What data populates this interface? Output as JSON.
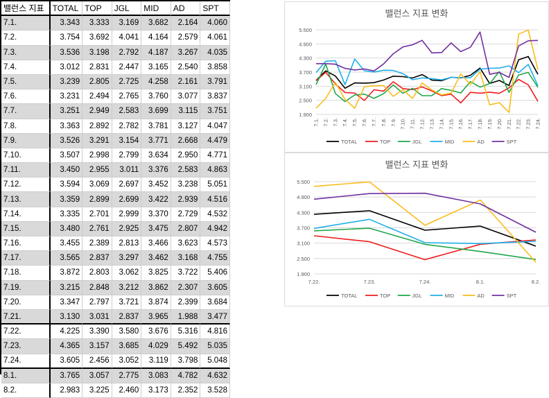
{
  "table": {
    "headers": [
      "밸런스 지표",
      "TOTAL",
      "TOP",
      "JGL",
      "MID",
      "AD",
      "SPT"
    ],
    "rows": [
      [
        "7.1.",
        "3.343",
        "3.333",
        "3.169",
        "3.682",
        "2.164",
        "4.060"
      ],
      [
        "7.2.",
        "3.754",
        "3.692",
        "4.041",
        "4.164",
        "2.579",
        "4.061"
      ],
      [
        "7.3.",
        "3.536",
        "3.198",
        "2.792",
        "4.187",
        "3.267",
        "4.035"
      ],
      [
        "7.4.",
        "3.012",
        "2.831",
        "2.447",
        "3.165",
        "2.540",
        "3.858"
      ],
      [
        "7.5.",
        "3.239",
        "2.805",
        "2.725",
        "4.258",
        "2.161",
        "3.791"
      ],
      [
        "7.6.",
        "3.231",
        "2.494",
        "2.765",
        "3.760",
        "3.077",
        "3.837"
      ],
      [
        "7.7.",
        "3.251",
        "2.949",
        "2.583",
        "3.699",
        "3.115",
        "3.751"
      ],
      [
        "7.8.",
        "3.363",
        "2.892",
        "2.782",
        "3.781",
        "3.127",
        "4.047"
      ],
      [
        "7.9.",
        "3.526",
        "3.291",
        "3.154",
        "3.771",
        "2.668",
        "4.479"
      ],
      [
        "7.10.",
        "3.507",
        "2.998",
        "2.799",
        "3.634",
        "2.950",
        "4.771"
      ],
      [
        "7.11.",
        "3.450",
        "2.955",
        "3.011",
        "3.376",
        "2.583",
        "4.863"
      ],
      [
        "7.12.",
        "3.594",
        "3.069",
        "2.697",
        "3.452",
        "3.238",
        "5.051"
      ],
      [
        "7.13.",
        "3.359",
        "2.899",
        "2.699",
        "3.422",
        "2.939",
        "4.516"
      ],
      [
        "7.14.",
        "3.335",
        "2.701",
        "2.999",
        "3.370",
        "2.729",
        "4.532"
      ],
      [
        "7.15.",
        "3.480",
        "2.761",
        "2.925",
        "3.475",
        "2.807",
        "4.942"
      ],
      [
        "7.16.",
        "3.455",
        "2.389",
        "2.813",
        "3.466",
        "3.623",
        "4.573"
      ],
      [
        "7.17.",
        "3.565",
        "2.837",
        "3.297",
        "3.462",
        "3.168",
        "4.755"
      ],
      [
        "7.18.",
        "3.872",
        "2.803",
        "3.062",
        "3.825",
        "3.722",
        "5.406"
      ],
      [
        "7.19.",
        "3.215",
        "2.848",
        "3.212",
        "3.862",
        "2.307",
        "3.605"
      ],
      [
        "7.20.",
        "3.347",
        "2.797",
        "3.721",
        "3.874",
        "2.399",
        "3.684"
      ],
      [
        "7.21.",
        "3.130",
        "3.031",
        "2.837",
        "3.965",
        "1.988",
        "3.477"
      ],
      [
        "7.22.",
        "4.225",
        "3.390",
        "3.580",
        "3.676",
        "5.316",
        "4.816"
      ],
      [
        "7.23.",
        "4.365",
        "3.157",
        "3.685",
        "4.029",
        "5.492",
        "5.035"
      ],
      [
        "7.24.",
        "3.605",
        "2.456",
        "3.052",
        "3.119",
        "3.798",
        "5.048"
      ],
      [
        "8.1.",
        "3.765",
        "3.057",
        "2.775",
        "3.083",
        "4.782",
        "4.632"
      ],
      [
        "8.2.",
        "2.983",
        "3.225",
        "2.460",
        "3.173",
        "2.352",
        "3.528"
      ]
    ]
  },
  "chart_data": [
    {
      "type": "line",
      "title": "밸런스 지표 변화",
      "xlabel": "",
      "ylabel": "",
      "categories": [
        "7.1.",
        "7.2.",
        "7.3.",
        "7.4.",
        "7.5.",
        "7.6.",
        "7.7.",
        "7.8.",
        "7.9.",
        "7.10.",
        "7.11.",
        "7.12.",
        "7.13.",
        "7.14.",
        "7.15.",
        "7.16.",
        "7.17.",
        "7.18.",
        "7.19.",
        "7.20.",
        "7.21.",
        "7.22.",
        "7.23.",
        "7.24."
      ],
      "yticks": [
        "1.900",
        "2.500",
        "3.100",
        "3.700",
        "4.300",
        "4.900",
        "5.500"
      ],
      "ylim": [
        1.9,
        5.5
      ],
      "grid": true,
      "legend": "bottom",
      "series": [
        {
          "name": "TOTAL",
          "color": "#000000",
          "values": [
            3.343,
            3.754,
            3.536,
            3.012,
            3.239,
            3.231,
            3.251,
            3.363,
            3.526,
            3.507,
            3.45,
            3.594,
            3.359,
            3.335,
            3.48,
            3.455,
            3.565,
            3.872,
            3.215,
            3.347,
            3.13,
            4.225,
            4.365,
            3.605
          ]
        },
        {
          "name": "TOP",
          "color": "#ee1c1c",
          "values": [
            3.333,
            3.692,
            3.198,
            2.831,
            2.805,
            2.494,
            2.949,
            2.892,
            3.291,
            2.998,
            2.955,
            3.069,
            2.899,
            2.701,
            2.761,
            2.389,
            2.837,
            2.803,
            2.848,
            2.797,
            3.031,
            3.39,
            3.157,
            2.456
          ]
        },
        {
          "name": "JGL",
          "color": "#1ea84a",
          "values": [
            3.169,
            4.041,
            2.792,
            2.447,
            2.725,
            2.765,
            2.583,
            2.782,
            3.154,
            2.799,
            3.011,
            2.697,
            2.699,
            2.999,
            2.925,
            2.813,
            3.297,
            3.062,
            3.212,
            3.721,
            2.837,
            3.58,
            3.685,
            3.052
          ]
        },
        {
          "name": "MID",
          "color": "#1eaee8",
          "values": [
            3.682,
            4.164,
            4.187,
            3.165,
            4.258,
            3.76,
            3.699,
            3.781,
            3.771,
            3.634,
            3.376,
            3.452,
            3.422,
            3.37,
            3.475,
            3.466,
            3.462,
            3.825,
            3.862,
            3.874,
            3.965,
            3.676,
            4.029,
            3.119
          ]
        },
        {
          "name": "AD",
          "color": "#f9bc1b",
          "values": [
            2.164,
            2.579,
            3.267,
            2.54,
            2.161,
            3.077,
            3.115,
            3.127,
            2.668,
            2.95,
            2.583,
            3.238,
            2.939,
            2.729,
            2.807,
            3.623,
            3.168,
            3.722,
            2.307,
            2.399,
            1.988,
            5.316,
            5.492,
            3.798
          ]
        },
        {
          "name": "SPT",
          "color": "#7030a0",
          "values": [
            4.06,
            4.061,
            4.035,
            3.858,
            3.791,
            3.837,
            3.751,
            4.047,
            4.479,
            4.771,
            4.863,
            5.051,
            4.516,
            4.532,
            4.942,
            4.573,
            4.755,
            5.406,
            3.605,
            3.684,
            3.477,
            4.816,
            5.035,
            5.048
          ]
        }
      ]
    },
    {
      "type": "line",
      "title": "밸런스 지표 변화",
      "xlabel": "",
      "ylabel": "",
      "categories": [
        "7.22.",
        "7.23.",
        "7.24.",
        "8.1.",
        "8.2."
      ],
      "yticks": [
        "1.900",
        "2.500",
        "3.100",
        "3.700",
        "4.300",
        "4.900",
        "5.500"
      ],
      "ylim": [
        1.9,
        5.5
      ],
      "grid": true,
      "legend": "bottom",
      "series": [
        {
          "name": "TOTAL",
          "color": "#000000",
          "values": [
            4.225,
            4.365,
            3.605,
            3.765,
            2.983
          ]
        },
        {
          "name": "TOP",
          "color": "#ee1c1c",
          "values": [
            3.39,
            3.157,
            2.456,
            3.057,
            3.225
          ]
        },
        {
          "name": "JGL",
          "color": "#1ea84a",
          "values": [
            3.58,
            3.685,
            3.052,
            2.775,
            2.46
          ]
        },
        {
          "name": "MID",
          "color": "#1eaee8",
          "values": [
            3.676,
            4.029,
            3.119,
            3.083,
            3.173
          ]
        },
        {
          "name": "AD",
          "color": "#f9bc1b",
          "values": [
            5.316,
            5.492,
            3.798,
            4.782,
            2.352
          ]
        },
        {
          "name": "SPT",
          "color": "#7030a0",
          "values": [
            4.816,
            5.035,
            5.048,
            4.632,
            3.528
          ]
        }
      ]
    }
  ]
}
